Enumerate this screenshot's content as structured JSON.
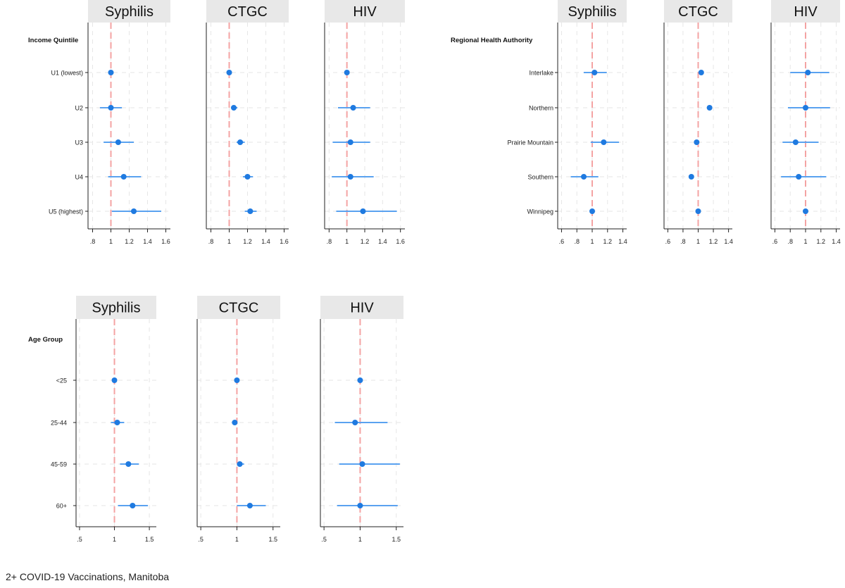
{
  "caption": "2+ COVID-19 Vaccinations, Manitoba",
  "colors": {
    "point": "#1f7ae0",
    "ci": "#5aa2f0",
    "reference": "#f4a3a3",
    "grid": "#e6e6e6",
    "strip": "#e8e8e8",
    "axis": "#222222"
  },
  "chart_data": [
    {
      "type": "scatter",
      "group_title": "Income Quintile",
      "categories": [
        "U1 (lowest)",
        "U2",
        "U3",
        "U4",
        "U5 (highest)"
      ],
      "reference": 1,
      "panels": [
        {
          "title": "Syphilis",
          "xlim": [
            0.75,
            1.65
          ],
          "ticks": [
            0.8,
            1,
            1.2,
            1.4,
            1.6
          ],
          "tick_labels": [
            ".8",
            "1",
            "1.2",
            "1.4",
            "1.6"
          ],
          "estimates": [
            1.0,
            1.0,
            1.08,
            1.14,
            1.25
          ],
          "ci_low": [
            1.0,
            0.88,
            0.92,
            0.97,
            1.01
          ],
          "ci_high": [
            1.0,
            1.12,
            1.25,
            1.33,
            1.55
          ]
        },
        {
          "title": "CTGC",
          "xlim": [
            0.75,
            1.65
          ],
          "ticks": [
            0.8,
            1,
            1.2,
            1.4,
            1.6
          ],
          "tick_labels": [
            ".8",
            "1",
            "1.2",
            "1.4",
            "1.6"
          ],
          "estimates": [
            1.0,
            1.05,
            1.12,
            1.2,
            1.23
          ],
          "ci_low": [
            1.0,
            1.02,
            1.08,
            1.15,
            1.17
          ],
          "ci_high": [
            1.0,
            1.09,
            1.17,
            1.26,
            1.3
          ]
        },
        {
          "title": "HIV",
          "xlim": [
            0.75,
            1.65
          ],
          "ticks": [
            0.8,
            1,
            1.2,
            1.4,
            1.6
          ],
          "tick_labels": [
            ".8",
            "1",
            "1.2",
            "1.4",
            "1.6"
          ],
          "estimates": [
            1.0,
            1.07,
            1.04,
            1.04,
            1.18
          ],
          "ci_low": [
            1.0,
            0.9,
            0.84,
            0.83,
            0.88
          ],
          "ci_high": [
            1.0,
            1.26,
            1.26,
            1.3,
            1.56
          ]
        }
      ]
    },
    {
      "type": "scatter",
      "group_title": "Regional Health Authority",
      "categories": [
        "Interlake",
        "Northern",
        "Prairie Mountain",
        "Southern",
        "Winnipeg"
      ],
      "reference": 1,
      "panels": [
        {
          "title": "Syphilis",
          "xlim": [
            0.55,
            1.45
          ],
          "ticks": [
            0.6,
            0.8,
            1,
            1.2,
            1.4
          ],
          "tick_labels": [
            ".6",
            ".8",
            "1",
            "1.2",
            "1.4"
          ],
          "estimates": [
            1.03,
            null,
            1.15,
            0.89,
            1.0
          ],
          "ci_low": [
            0.89,
            null,
            0.98,
            0.72,
            1.0
          ],
          "ci_high": [
            1.19,
            null,
            1.35,
            1.08,
            1.0
          ]
        },
        {
          "title": "CTGC",
          "xlim": [
            0.55,
            1.45
          ],
          "ticks": [
            0.6,
            0.8,
            1,
            1.2,
            1.4
          ],
          "tick_labels": [
            ".6",
            ".8",
            "1",
            "1.2",
            "1.4"
          ],
          "estimates": [
            1.04,
            1.15,
            0.98,
            0.91,
            1.0
          ],
          "ci_low": [
            1.01,
            1.12,
            0.96,
            0.88,
            1.0
          ],
          "ci_high": [
            1.07,
            1.18,
            1.0,
            0.94,
            1.0
          ]
        },
        {
          "title": "HIV",
          "xlim": [
            0.55,
            1.45
          ],
          "ticks": [
            0.6,
            0.8,
            1,
            1.2,
            1.4
          ],
          "tick_labels": [
            ".6",
            ".8",
            "1",
            "1.2",
            "1.4"
          ],
          "estimates": [
            1.03,
            1.0,
            0.87,
            0.91,
            1.0
          ],
          "ci_low": [
            0.8,
            0.77,
            0.7,
            0.68,
            1.0
          ],
          "ci_high": [
            1.31,
            1.32,
            1.17,
            1.27,
            1.0
          ]
        }
      ]
    },
    {
      "type": "scatter",
      "group_title": "Age Group",
      "categories": [
        "<25",
        "25-44",
        "45-59",
        "60+"
      ],
      "reference": 1,
      "panels": [
        {
          "title": "Syphilis",
          "xlim": [
            0.45,
            1.6
          ],
          "ticks": [
            0.5,
            1,
            1.5
          ],
          "tick_labels": [
            ".5",
            "1",
            "1.5"
          ],
          "estimates": [
            1.0,
            1.04,
            1.2,
            1.26
          ],
          "ci_low": [
            1.0,
            0.95,
            1.08,
            1.05
          ],
          "ci_high": [
            1.0,
            1.14,
            1.35,
            1.48
          ]
        },
        {
          "title": "CTGC",
          "xlim": [
            0.45,
            1.6
          ],
          "ticks": [
            0.5,
            1,
            1.5
          ],
          "tick_labels": [
            ".5",
            "1",
            "1.5"
          ],
          "estimates": [
            1.0,
            0.97,
            1.04,
            1.18
          ],
          "ci_low": [
            1.0,
            0.95,
            1.0,
            1.0
          ],
          "ci_high": [
            1.0,
            0.99,
            1.1,
            1.4
          ]
        },
        {
          "title": "HIV",
          "xlim": [
            0.45,
            1.6
          ],
          "ticks": [
            0.5,
            1,
            1.5
          ],
          "tick_labels": [
            ".5",
            "1",
            "1.5"
          ],
          "estimates": [
            1.0,
            0.93,
            1.03,
            1.0
          ],
          "ci_low": [
            1.0,
            0.65,
            0.71,
            0.68
          ],
          "ci_high": [
            1.0,
            1.38,
            1.55,
            1.52
          ]
        }
      ]
    }
  ]
}
